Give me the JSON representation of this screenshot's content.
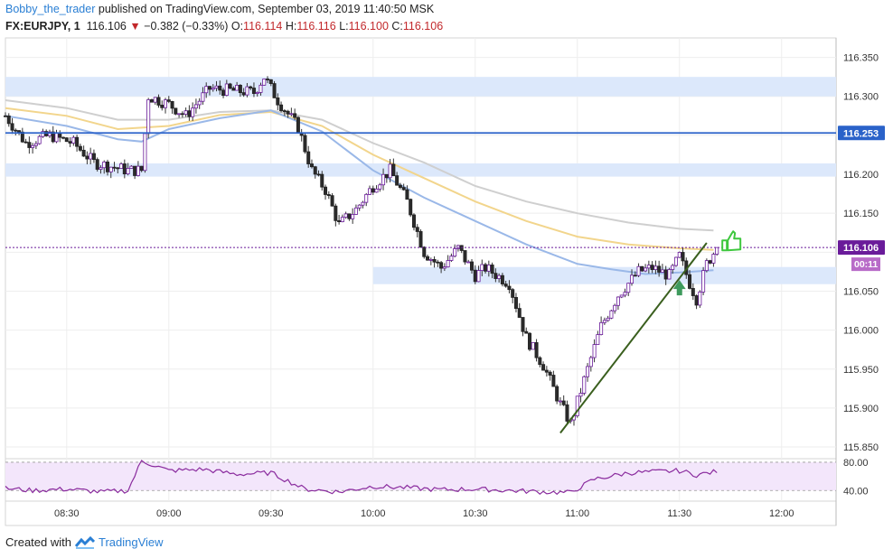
{
  "header": {
    "author": "Bobby_the_trader",
    "published": "published on TradingView.com, September 03, 2019 11:40:50 MSK",
    "symbol": "FX:EURJPY, 1",
    "price": "116.106",
    "change": "−0.382 (−0.33%)",
    "o_label": "O:",
    "o_value": "116.114",
    "h_label": "H:",
    "h_value": "116.116",
    "l_label": "L:",
    "l_value": "116.100",
    "c_label": "C:",
    "c_value": "116.106"
  },
  "footer": {
    "created_with": "Created with",
    "brand": "TradingView"
  },
  "colors": {
    "up": "#2b2b2b",
    "down": "#2b2b2b",
    "accent_purple": "#6a1b9a",
    "zone": "#dce8fb",
    "hline": "#2a62c9",
    "ma_gray": "#cfcfcf",
    "ma_yellow": "#f2d58c",
    "ma_blue": "#9ab8e8",
    "trendline": "#3a5f1e",
    "rsi": "#8a2b9e",
    "rsi_band": "#f3e6fb",
    "thumb": "#3ec73e"
  },
  "chart_data": [
    {
      "type": "candlestick",
      "title": "",
      "y_ticks": [
        "116.350",
        "116.300",
        "116.200",
        "116.150",
        "116.050",
        "116.000",
        "115.950",
        "115.900",
        "115.850"
      ],
      "ylim": [
        115.835,
        116.375
      ],
      "x_ticks": [
        "08:30",
        "09:00",
        "09:30",
        "10:00",
        "10:30",
        "11:00",
        "11:30",
        "12:00"
      ],
      "x_range": [
        "08:12",
        "12:16"
      ],
      "price_labels": {
        "hline": "116.253",
        "last": "116.106",
        "countdown": "00:11"
      },
      "hline_value": 116.253,
      "last_value": 116.106,
      "zones": [
        {
          "from": 116.3,
          "to": 116.325
        },
        {
          "from": 116.197,
          "to": 116.214
        },
        {
          "from": 116.059,
          "to": 116.081
        }
      ],
      "trendline": [
        [
          "10:55",
          115.868
        ],
        [
          "11:38",
          116.112
        ]
      ],
      "anchors_close": [
        [
          "08:12",
          116.275
        ],
        [
          "08:18",
          116.24
        ],
        [
          "08:25",
          116.25
        ],
        [
          "08:32",
          116.24
        ],
        [
          "08:38",
          116.215
        ],
        [
          "08:48",
          116.205
        ],
        [
          "08:52",
          116.205
        ],
        [
          "08:54",
          116.3
        ],
        [
          "09:00",
          116.29
        ],
        [
          "09:05",
          116.275
        ],
        [
          "09:12",
          116.31
        ],
        [
          "09:25",
          116.305
        ],
        [
          "09:28",
          116.325
        ],
        [
          "09:32",
          116.295
        ],
        [
          "09:38",
          116.26
        ],
        [
          "09:42",
          116.205
        ],
        [
          "09:46",
          116.18
        ],
        [
          "09:50",
          116.135
        ],
        [
          "09:55",
          116.155
        ],
        [
          "10:00",
          116.185
        ],
        [
          "10:05",
          116.205
        ],
        [
          "10:10",
          116.165
        ],
        [
          "10:15",
          116.1
        ],
        [
          "10:20",
          116.08
        ],
        [
          "10:25",
          116.105
        ],
        [
          "10:30",
          116.07
        ],
        [
          "10:33",
          116.08
        ],
        [
          "10:40",
          116.06
        ],
        [
          "10:45",
          115.99
        ],
        [
          "10:50",
          115.955
        ],
        [
          "10:55",
          115.905
        ],
        [
          "10:58",
          115.88
        ],
        [
          "11:03",
          115.95
        ],
        [
          "11:07",
          116.005
        ],
        [
          "11:12",
          116.045
        ],
        [
          "11:18",
          116.075
        ],
        [
          "11:22",
          116.08
        ],
        [
          "11:27",
          116.07
        ],
        [
          "11:30",
          116.095
        ],
        [
          "11:33",
          116.06
        ],
        [
          "11:35",
          116.04
        ],
        [
          "11:38",
          116.085
        ],
        [
          "11:41",
          116.106
        ]
      ],
      "series": [
        {
          "name": "",
          "kind": "ma_gray",
          "points": [
            [
              "08:12",
              116.295
            ],
            [
              "08:30",
              116.285
            ],
            [
              "08:45",
              116.27
            ],
            [
              "09:00",
              116.27
            ],
            [
              "09:15",
              116.28
            ],
            [
              "09:30",
              116.282
            ],
            [
              "09:45",
              116.27
            ],
            [
              "10:00",
              116.24
            ],
            [
              "10:15",
              116.215
            ],
            [
              "10:30",
              116.185
            ],
            [
              "10:45",
              116.165
            ],
            [
              "11:00",
              116.15
            ],
            [
              "11:15",
              116.138
            ],
            [
              "11:30",
              116.13
            ],
            [
              "11:40",
              116.128
            ]
          ]
        },
        {
          "name": "",
          "kind": "ma_yellow",
          "points": [
            [
              "08:12",
              116.285
            ],
            [
              "08:30",
              116.275
            ],
            [
              "08:45",
              116.258
            ],
            [
              "09:00",
              116.262
            ],
            [
              "09:15",
              116.276
            ],
            [
              "09:30",
              116.28
            ],
            [
              "09:45",
              116.262
            ],
            [
              "10:00",
              116.225
            ],
            [
              "10:15",
              116.195
            ],
            [
              "10:30",
              116.165
            ],
            [
              "10:45",
              116.14
            ],
            [
              "11:00",
              116.12
            ],
            [
              "11:15",
              116.11
            ],
            [
              "11:30",
              116.105
            ],
            [
              "11:40",
              116.103
            ]
          ]
        },
        {
          "name": "",
          "kind": "ma_blue",
          "points": [
            [
              "08:12",
              116.275
            ],
            [
              "08:30",
              116.262
            ],
            [
              "08:45",
              116.245
            ],
            [
              "08:52",
              116.242
            ],
            [
              "09:00",
              116.258
            ],
            [
              "09:15",
              116.272
            ],
            [
              "09:30",
              116.282
            ],
            [
              "09:45",
              116.255
            ],
            [
              "10:00",
              116.205
            ],
            [
              "10:15",
              116.17
            ],
            [
              "10:30",
              116.14
            ],
            [
              "10:45",
              116.11
            ],
            [
              "11:00",
              116.085
            ],
            [
              "11:10",
              116.078
            ],
            [
              "11:20",
              116.072
            ],
            [
              "11:30",
              116.074
            ],
            [
              "11:40",
              116.077
            ]
          ]
        },
        {
          "name": "",
          "kind": "rsi",
          "y_ticks": [
            "80.00",
            "40.00"
          ],
          "ylim": [
            25,
            85
          ],
          "points": [
            [
              "08:12",
              43
            ],
            [
              "08:20",
              40
            ],
            [
              "08:30",
              42
            ],
            [
              "08:40",
              38
            ],
            [
              "08:48",
              40
            ],
            [
              "08:52",
              82
            ],
            [
              "09:00",
              68
            ],
            [
              "09:10",
              70
            ],
            [
              "09:20",
              63
            ],
            [
              "09:30",
              65
            ],
            [
              "09:40",
              42
            ],
            [
              "09:50",
              38
            ],
            [
              "10:00",
              46
            ],
            [
              "10:10",
              44
            ],
            [
              "10:20",
              41
            ],
            [
              "10:30",
              42
            ],
            [
              "10:40",
              40
            ],
            [
              "10:50",
              38
            ],
            [
              "10:58",
              37
            ],
            [
              "11:05",
              56
            ],
            [
              "11:15",
              65
            ],
            [
              "11:25",
              67
            ],
            [
              "11:30",
              68
            ],
            [
              "11:35",
              62
            ],
            [
              "11:41",
              67
            ]
          ]
        }
      ]
    }
  ]
}
